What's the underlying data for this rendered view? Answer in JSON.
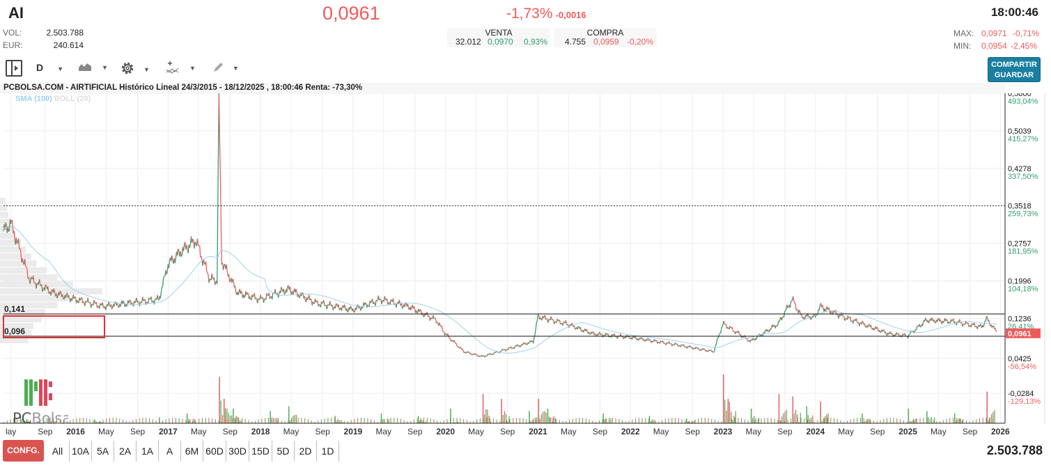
{
  "header": {
    "ticker": "AI",
    "price": "0,0961",
    "change_pct": "-1,73%",
    "change_abs": "-0,0016",
    "time": "18:00:46",
    "vol_label": "VOL:",
    "vol": "2.503.788",
    "eur_label": "EUR:",
    "eur": "240.614",
    "max_label": "MAX:",
    "max": "0,0971",
    "max_pct": "-0,71%",
    "min_label": "MIN:",
    "min": "0,0954",
    "min_pct": "-2,45%"
  },
  "book": {
    "sell_label": "VENTA",
    "sell_qty": "32.012",
    "sell_price": "0,0970",
    "sell_pct": "0,93%",
    "buy_label": "COMPRA",
    "buy_qty": "4.755",
    "buy_price": "0,0959",
    "buy_pct": "-0,20%"
  },
  "toolbar": {
    "period": "D",
    "share": "COMPARTIR",
    "save": "GUARDAR"
  },
  "chart_title": "PCBOLSA.COM - AIRTIFICIAL Histórico Lineal 24/3/2015 - 18/12/2025 , 18:00:46 Renta: -73,30%",
  "legend": {
    "sma": "SMA (100)",
    "boll": "BOLL (20)"
  },
  "colors": {
    "up": "#2e9e6e",
    "down": "#f05a5a",
    "sma": "#9fd0ee",
    "accent": "#1a7fa0"
  },
  "levels": {
    "upper": "0,141",
    "lower": "0,096"
  },
  "chart_data": {
    "type": "line",
    "ylim": [
      -0.0284,
      0.58
    ],
    "xlim": [
      2015.22,
      2026.05
    ],
    "y_ticks": [
      {
        "v": 0.58,
        "l": "0,5800",
        "p": "493,04%"
      },
      {
        "v": 0.5039,
        "l": "0,5039",
        "p": "415,27%"
      },
      {
        "v": 0.4278,
        "l": "0,4278",
        "p": "337,50%"
      },
      {
        "v": 0.3518,
        "l": "0,3518",
        "p": "259,73%"
      },
      {
        "v": 0.2757,
        "l": "0,2757",
        "p": "181,95%"
      },
      {
        "v": 0.1996,
        "l": "0,1996",
        "p": "104,18%"
      },
      {
        "v": 0.1236,
        "l": "0,1236",
        "p": "26,41%"
      },
      {
        "v": 0.0425,
        "l": "0,0425",
        "p": "-56,54%"
      },
      {
        "v": -0.0284,
        "l": "-0,0284",
        "p": "-129,13%"
      }
    ],
    "last": {
      "v": 0.0961,
      "l": "0,0961"
    },
    "x_ticks": [
      {
        "v": 2015.3,
        "l": "lay"
      },
      {
        "v": 2015.67,
        "l": "Sep"
      },
      {
        "v": 2016,
        "l": "2016",
        "y": 1
      },
      {
        "v": 2016.33,
        "l": "May"
      },
      {
        "v": 2016.67,
        "l": "Sep"
      },
      {
        "v": 2017,
        "l": "2017",
        "y": 1
      },
      {
        "v": 2017.33,
        "l": "May"
      },
      {
        "v": 2017.67,
        "l": "Sep"
      },
      {
        "v": 2018,
        "l": "2018",
        "y": 1
      },
      {
        "v": 2018.33,
        "l": "May"
      },
      {
        "v": 2018.67,
        "l": "Sep"
      },
      {
        "v": 2019,
        "l": "2019",
        "y": 1
      },
      {
        "v": 2019.33,
        "l": "May"
      },
      {
        "v": 2019.67,
        "l": "Sep"
      },
      {
        "v": 2020,
        "l": "2020",
        "y": 1
      },
      {
        "v": 2020.33,
        "l": "May"
      },
      {
        "v": 2020.67,
        "l": "Sep"
      },
      {
        "v": 2021,
        "l": "2021",
        "y": 1
      },
      {
        "v": 2021.33,
        "l": "May"
      },
      {
        "v": 2021.67,
        "l": "Sep"
      },
      {
        "v": 2022,
        "l": "2022",
        "y": 1
      },
      {
        "v": 2022.33,
        "l": "May"
      },
      {
        "v": 2022.67,
        "l": "Sep"
      },
      {
        "v": 2023,
        "l": "2023",
        "y": 1
      },
      {
        "v": 2023.33,
        "l": "May"
      },
      {
        "v": 2023.67,
        "l": "Sep"
      },
      {
        "v": 2024,
        "l": "2024",
        "y": 1
      },
      {
        "v": 2024.33,
        "l": "May"
      },
      {
        "v": 2024.67,
        "l": "Sep"
      },
      {
        "v": 2025,
        "l": "2025",
        "y": 1
      },
      {
        "v": 2025.33,
        "l": "May"
      },
      {
        "v": 2025.67,
        "l": "Sep"
      },
      {
        "v": 2026,
        "l": "2026",
        "y": 1
      }
    ],
    "price": [
      [
        2015.22,
        0.3
      ],
      [
        2015.3,
        0.317
      ],
      [
        2015.5,
        0.204
      ],
      [
        2015.75,
        0.176
      ],
      [
        2016.0,
        0.162
      ],
      [
        2016.3,
        0.148
      ],
      [
        2016.6,
        0.155
      ],
      [
        2016.9,
        0.162
      ],
      [
        2017.0,
        0.233
      ],
      [
        2017.15,
        0.261
      ],
      [
        2017.3,
        0.282
      ],
      [
        2017.45,
        0.204
      ],
      [
        2017.53,
        0.2
      ],
      [
        2017.55,
        0.564
      ],
      [
        2017.58,
        0.24
      ],
      [
        2017.75,
        0.176
      ],
      [
        2018.0,
        0.162
      ],
      [
        2018.3,
        0.183
      ],
      [
        2018.6,
        0.155
      ],
      [
        2019.0,
        0.141
      ],
      [
        2019.3,
        0.162
      ],
      [
        2019.6,
        0.148
      ],
      [
        2019.9,
        0.12
      ],
      [
        2020.0,
        0.092
      ],
      [
        2020.2,
        0.056
      ],
      [
        2020.4,
        0.046
      ],
      [
        2020.7,
        0.063
      ],
      [
        2020.95,
        0.077
      ],
      [
        2021.0,
        0.127
      ],
      [
        2021.3,
        0.113
      ],
      [
        2021.6,
        0.092
      ],
      [
        2022.0,
        0.085
      ],
      [
        2022.5,
        0.07
      ],
      [
        2022.9,
        0.056
      ],
      [
        2023.0,
        0.113
      ],
      [
        2023.3,
        0.077
      ],
      [
        2023.6,
        0.113
      ],
      [
        2023.75,
        0.162
      ],
      [
        2023.85,
        0.127
      ],
      [
        2024.0,
        0.127
      ],
      [
        2024.05,
        0.148
      ],
      [
        2024.3,
        0.127
      ],
      [
        2024.8,
        0.092
      ],
      [
        2025.0,
        0.088
      ],
      [
        2025.2,
        0.12
      ],
      [
        2025.5,
        0.117
      ],
      [
        2025.8,
        0.106
      ],
      [
        2025.85,
        0.123
      ],
      [
        2025.96,
        0.0961
      ]
    ],
    "volume": [
      [
        2015.4,
        0.15
      ],
      [
        2015.7,
        0.1
      ],
      [
        2016.2,
        0.08
      ],
      [
        2016.9,
        0.12
      ],
      [
        2017.2,
        0.2
      ],
      [
        2017.55,
        0.95
      ],
      [
        2017.6,
        0.5
      ],
      [
        2017.7,
        0.3
      ],
      [
        2018.1,
        0.25
      ],
      [
        2018.3,
        0.35
      ],
      [
        2018.8,
        0.15
      ],
      [
        2019.3,
        0.2
      ],
      [
        2019.7,
        0.15
      ],
      [
        2020.05,
        0.3
      ],
      [
        2020.4,
        0.6
      ],
      [
        2020.6,
        0.5
      ],
      [
        2020.9,
        0.25
      ],
      [
        2021.0,
        0.5
      ],
      [
        2021.1,
        0.3
      ],
      [
        2021.7,
        0.2
      ],
      [
        2022.2,
        0.15
      ],
      [
        2022.6,
        0.1
      ],
      [
        2023.0,
        1.0
      ],
      [
        2023.05,
        0.5
      ],
      [
        2023.3,
        0.3
      ],
      [
        2023.6,
        0.6
      ],
      [
        2023.75,
        0.55
      ],
      [
        2023.9,
        0.35
      ],
      [
        2024.05,
        0.45
      ],
      [
        2024.5,
        0.2
      ],
      [
        2025.0,
        0.3
      ],
      [
        2025.2,
        0.25
      ],
      [
        2025.5,
        0.2
      ],
      [
        2025.85,
        0.65
      ]
    ],
    "volume_profile": [
      0.05,
      0.07,
      0.08,
      0.1,
      0.12,
      0.15,
      0.2,
      0.25,
      0.3,
      0.35,
      0.45,
      0.55,
      0.7,
      0.98,
      0.65,
      0.55,
      0.43,
      0.4,
      0.32,
      0.3,
      0.27
    ]
  },
  "ranges": [
    "All",
    "10A",
    "5A",
    "2A",
    "1A",
    "A",
    "6M",
    "60D",
    "30D",
    "15D",
    "5D",
    "2D",
    "1D"
  ],
  "config": "CONFG.",
  "total_volume": "2.503.788"
}
